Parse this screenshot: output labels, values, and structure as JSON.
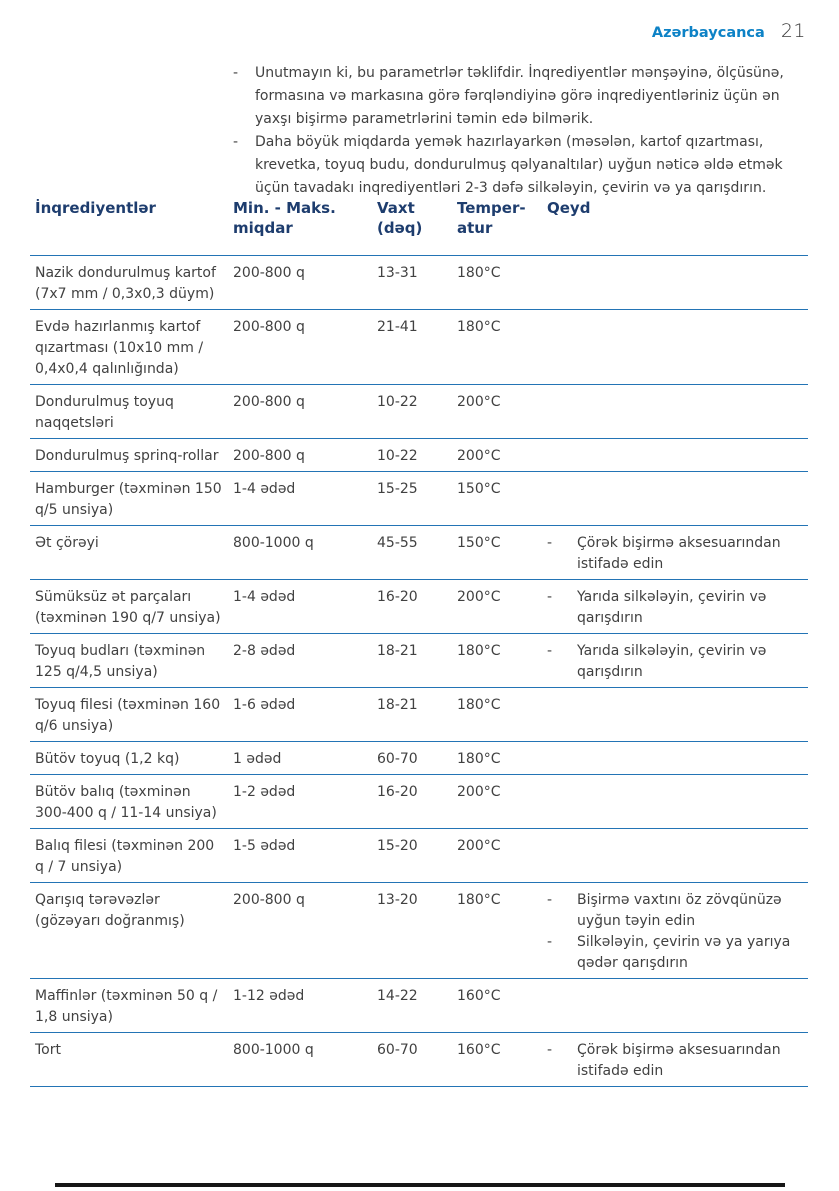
{
  "page": {
    "language_label": "Azərbaycanca",
    "page_number": "21",
    "bullet_char": "-",
    "colors": {
      "accent_blue": "#0d82c6",
      "heading_navy": "#1e3d6e",
      "rule_blue": "#2374b5",
      "body_text": "#414141",
      "footer_bar": "#161616"
    }
  },
  "intro": {
    "items": [
      "Unutmayın ki, bu parametrlər təklifdir. İnqrediyentlər mənşəyinə, ölçüsünə, formasına və markasına görə fərqləndiyinə görə inqrediyentləriniz üçün ən yaxşı bişirmə parametrlərini təmin edə bilmərik.",
      "Daha böyük miqdarda yemək hazırlayarkən (məsələn, kartof qızartması, krevetka, toyuq budu, dondurulmuş qəlyanaltılar) uyğun nəticə əldə etmək üçün tavadakı inqrediyentləri 2-3 dəfə silkələyin, çevirin və ya qarışdırın."
    ]
  },
  "table": {
    "headers": {
      "ingredient": "İnqrediyentlər",
      "amount": "Min. - Maks.\nmiqdar",
      "time": "Vaxt\n(dəq)",
      "temperature": "Temper-\natur",
      "note": "Qeyd"
    },
    "rows": [
      {
        "ingredient": "Nazik dondurulmuş kartof (7x7 mm / 0,3x0,3 düym)",
        "amount": "200-800 q",
        "time": "13-31",
        "temp": "180°C",
        "notes": []
      },
      {
        "ingredient": "Evdə hazırlanmış kartof qızartması (10x10 mm / 0,4x0,4 qalınlığında)",
        "amount": "200-800 q",
        "time": "21-41",
        "temp": "180°C",
        "notes": []
      },
      {
        "ingredient": "Dondurulmuş toyuq naqqetsləri",
        "amount": "200-800 q",
        "time": "10-22",
        "temp": "200°C",
        "notes": []
      },
      {
        "ingredient": "Dondurulmuş sprinq-rollar",
        "amount": "200-800 q",
        "time": "10-22",
        "temp": "200°C",
        "notes": []
      },
      {
        "ingredient": "Hamburger (təxminən 150 q/5 unsiya)",
        "amount": "1-4 ədəd",
        "time": "15-25",
        "temp": "150°C",
        "notes": []
      },
      {
        "ingredient": "Ət çörəyi",
        "amount": "800-1000 q",
        "time": "45-55",
        "temp": "150°C",
        "notes": [
          "Çörək bişirmə aksesuarından istifadə edin"
        ]
      },
      {
        "ingredient": "Sümüksüz ət parçaları (təxminən 190 q/7 unsiya)",
        "amount": "1-4 ədəd",
        "time": "16-20",
        "temp": "200°C",
        "notes": [
          "Yarıda silkələyin, çevirin və qarışdırın"
        ]
      },
      {
        "ingredient": "Toyuq budları (təxminən 125 q/4,5 unsiya)",
        "amount": "2-8 ədəd",
        "time": "18-21",
        "temp": "180°C",
        "notes": [
          "Yarıda silkələyin, çevirin və qarışdırın"
        ]
      },
      {
        "ingredient": "Toyuq filesi (təxminən 160 q/6 unsiya)",
        "amount": "1-6 ədəd",
        "time": "18-21",
        "temp": "180°C",
        "notes": []
      },
      {
        "ingredient": "Bütöv toyuq (1,2 kq)",
        "amount": "1 ədəd",
        "time": "60-70",
        "temp": "180°C",
        "notes": []
      },
      {
        "ingredient": "Bütöv balıq (təxminən 300-400 q / 11-14 unsiya)",
        "amount": "1-2 ədəd",
        "time": "16-20",
        "temp": "200°C",
        "notes": []
      },
      {
        "ingredient": "Balıq filesi (təxminən 200 q / 7 unsiya)",
        "amount": "1-5 ədəd",
        "time": "15-20",
        "temp": "200°C",
        "notes": []
      },
      {
        "ingredient": "Qarışıq tərəvəzlər (gözəyarı doğranmış)",
        "amount": "200-800 q",
        "time": "13-20",
        "temp": "180°C",
        "notes": [
          "Bişirmə vaxtını öz zövqünüzə uyğun təyin edin",
          "Silkələyin, çevirin və ya yarıya qədər qarışdırın"
        ]
      },
      {
        "ingredient": "Maffinlər (təxminən 50 q / 1,8 unsiya)",
        "amount": "1-12 ədəd",
        "time": "14-22",
        "temp": "160°C",
        "notes": []
      },
      {
        "ingredient": "Tort",
        "amount": "800-1000 q",
        "time": "60-70",
        "temp": "160°C",
        "notes": [
          "Çörək bişirmə aksesuarından istifadə edin"
        ]
      }
    ]
  }
}
